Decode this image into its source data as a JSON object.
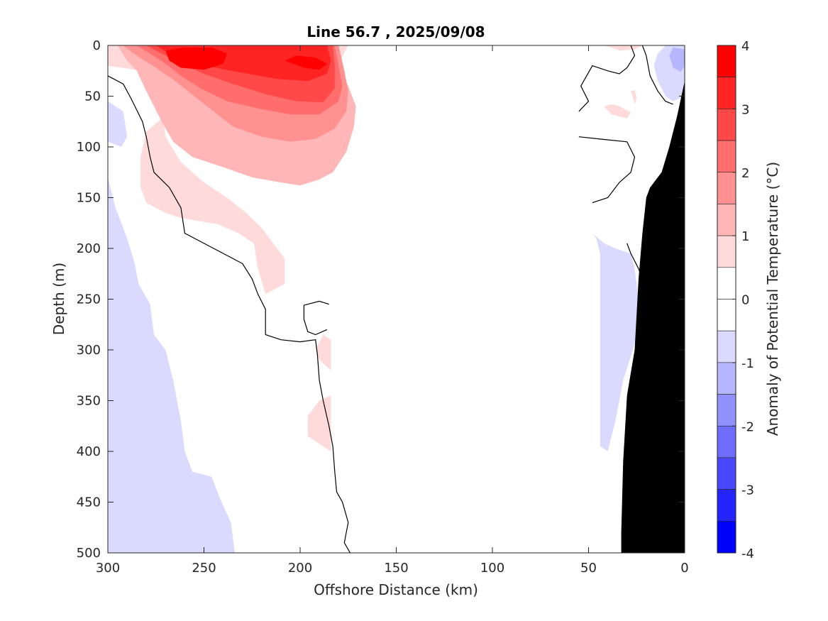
{
  "chart_data": {
    "type": "heatmap",
    "title": "Line 56.7 , 2025/09/08",
    "xlabel": "Offshore Distance (km)",
    "ylabel": "Depth (m)",
    "xlim": [
      300,
      0
    ],
    "ylim": [
      0,
      500
    ],
    "x_reversed": true,
    "y_reversed": true,
    "xticks": [
      300,
      250,
      200,
      150,
      100,
      50,
      0
    ],
    "yticks": [
      0,
      50,
      100,
      150,
      200,
      250,
      300,
      350,
      400,
      450,
      500
    ],
    "colorbar": {
      "label": "Anomaly of Potential Temperature (°C)",
      "range": [
        -4,
        4
      ],
      "ticks": [
        4,
        3,
        2,
        1,
        0,
        -1,
        -2,
        -3,
        -4
      ],
      "levels": [
        {
          "from": 3.5,
          "to": 4.0,
          "color": "#ff0000"
        },
        {
          "from": 3.0,
          "to": 3.5,
          "color": "#ff2424"
        },
        {
          "from": 2.5,
          "to": 3.0,
          "color": "#ff4848"
        },
        {
          "from": 2.0,
          "to": 2.5,
          "color": "#ff6d6d"
        },
        {
          "from": 1.5,
          "to": 2.0,
          "color": "#ff9191"
        },
        {
          "from": 1.0,
          "to": 1.5,
          "color": "#ffb6b6"
        },
        {
          "from": 0.5,
          "to": 1.0,
          "color": "#ffdada"
        },
        {
          "from": 0.0,
          "to": 0.5,
          "color": "#ffffff"
        },
        {
          "from": -0.5,
          "to": 0.0,
          "color": "#ffffff"
        },
        {
          "from": -1.0,
          "to": -0.5,
          "color": "#dadaff"
        },
        {
          "from": -1.5,
          "to": -1.0,
          "color": "#b6b6ff"
        },
        {
          "from": -2.0,
          "to": -1.5,
          "color": "#9191ff"
        },
        {
          "from": -2.5,
          "to": -2.0,
          "color": "#6d6dff"
        },
        {
          "from": -3.0,
          "to": -2.5,
          "color": "#4848ff"
        },
        {
          "from": -3.5,
          "to": -3.0,
          "color": "#2424ff"
        },
        {
          "from": -4.0,
          "to": -3.5,
          "color": "#0000ff"
        }
      ]
    },
    "regions": [
      {
        "name": "cool-offshore",
        "anomaly": -0.75,
        "color": "#dadaff",
        "outline": [
          [
            300,
            130
          ],
          [
            296,
            160
          ],
          [
            290,
            190
          ],
          [
            286,
            215
          ],
          [
            284,
            235
          ],
          [
            278,
            255
          ],
          [
            276,
            285
          ],
          [
            270,
            300
          ],
          [
            266,
            330
          ],
          [
            262,
            370
          ],
          [
            260,
            400
          ],
          [
            256,
            420
          ],
          [
            246,
            425
          ],
          [
            242,
            445
          ],
          [
            236,
            470
          ],
          [
            234,
            500
          ],
          [
            300,
            500
          ]
        ]
      },
      {
        "name": "cool-offshore-upper",
        "anomaly": -0.75,
        "color": "#dadaff",
        "outline": [
          [
            300,
            55
          ],
          [
            292,
            65
          ],
          [
            290,
            90
          ],
          [
            293,
            100
          ],
          [
            300,
            95
          ]
        ]
      },
      {
        "name": "warm-0.5",
        "anomaly": 0.75,
        "color": "#ffdada",
        "outline": [
          [
            300,
            20
          ],
          [
            282,
            25
          ],
          [
            276,
            40
          ],
          [
            272,
            60
          ],
          [
            270,
            90
          ],
          [
            262,
            115
          ],
          [
            250,
            135
          ],
          [
            238,
            150
          ],
          [
            228,
            165
          ],
          [
            220,
            180
          ],
          [
            214,
            195
          ],
          [
            208,
            210
          ],
          [
            208,
            235
          ],
          [
            218,
            245
          ],
          [
            222,
            220
          ],
          [
            224,
            195
          ],
          [
            232,
            185
          ],
          [
            243,
            176
          ],
          [
            262,
            170
          ],
          [
            270,
            165
          ],
          [
            280,
            155
          ],
          [
            283,
            140
          ],
          [
            283,
            110
          ],
          [
            280,
            85
          ],
          [
            272,
            72
          ],
          [
            262,
            60
          ],
          [
            253,
            48
          ],
          [
            225,
            40
          ],
          [
            200,
            35
          ],
          [
            182,
            25
          ],
          [
            175,
            0
          ],
          [
            300,
            0
          ]
        ]
      },
      {
        "name": "warm-1.0",
        "anomaly": 1.25,
        "color": "#ffb6b6",
        "outline": [
          [
            295,
            0
          ],
          [
            290,
            15
          ],
          [
            285,
            25
          ],
          [
            280,
            45
          ],
          [
            272,
            75
          ],
          [
            266,
            95
          ],
          [
            256,
            110
          ],
          [
            240,
            120
          ],
          [
            225,
            130
          ],
          [
            210,
            135
          ],
          [
            200,
            138
          ],
          [
            190,
            132
          ],
          [
            183,
            125
          ],
          [
            176,
            105
          ],
          [
            172,
            80
          ],
          [
            171,
            60
          ],
          [
            175,
            40
          ],
          [
            180,
            20
          ],
          [
            182,
            0
          ]
        ]
      },
      {
        "name": "warm-1.5",
        "anomaly": 1.75,
        "color": "#ff9191",
        "outline": [
          [
            292,
            0
          ],
          [
            285,
            10
          ],
          [
            275,
            22
          ],
          [
            265,
            35
          ],
          [
            255,
            50
          ],
          [
            245,
            65
          ],
          [
            235,
            80
          ],
          [
            220,
            90
          ],
          [
            205,
            95
          ],
          [
            192,
            92
          ],
          [
            182,
            82
          ],
          [
            176,
            65
          ],
          [
            175,
            45
          ],
          [
            177,
            25
          ],
          [
            180,
            0
          ]
        ]
      },
      {
        "name": "warm-2.0",
        "anomaly": 2.25,
        "color": "#ff6d6d",
        "outline": [
          [
            285,
            0
          ],
          [
            278,
            8
          ],
          [
            270,
            18
          ],
          [
            262,
            30
          ],
          [
            252,
            42
          ],
          [
            238,
            55
          ],
          [
            222,
            62
          ],
          [
            205,
            68
          ],
          [
            190,
            68
          ],
          [
            180,
            55
          ],
          [
            178,
            40
          ],
          [
            180,
            20
          ],
          [
            182,
            0
          ]
        ]
      },
      {
        "name": "warm-2.5",
        "anomaly": 2.75,
        "color": "#ff4848",
        "outline": [
          [
            280,
            0
          ],
          [
            272,
            8
          ],
          [
            262,
            18
          ],
          [
            250,
            28
          ],
          [
            235,
            38
          ],
          [
            218,
            48
          ],
          [
            202,
            55
          ],
          [
            188,
            56
          ],
          [
            182,
            42
          ],
          [
            182,
            20
          ],
          [
            183,
            0
          ]
        ]
      },
      {
        "name": "warm-3.0",
        "anomaly": 3.25,
        "color": "#ff2424",
        "outline": [
          [
            275,
            0
          ],
          [
            268,
            8
          ],
          [
            258,
            16
          ],
          [
            244,
            22
          ],
          [
            230,
            27
          ],
          [
            212,
            33
          ],
          [
            196,
            35
          ],
          [
            186,
            28
          ],
          [
            184,
            15
          ],
          [
            186,
            0
          ]
        ]
      },
      {
        "name": "warm-3.5",
        "anomaly": 3.75,
        "color": "#ff0000",
        "outline": [
          [
            270,
            5
          ],
          [
            268,
            15
          ],
          [
            262,
            22
          ],
          [
            250,
            24
          ],
          [
            240,
            18
          ],
          [
            238,
            8
          ],
          [
            246,
            2
          ],
          [
            260,
            2
          ]
        ]
      },
      {
        "name": "warm-core-200",
        "anomaly": 3.75,
        "color": "#ff0000",
        "outline": [
          [
            208,
            15
          ],
          [
            198,
            22
          ],
          [
            190,
            24
          ],
          [
            186,
            18
          ],
          [
            192,
            12
          ],
          [
            202,
            10
          ]
        ]
      },
      {
        "name": "warm-lens-190",
        "anomaly": 0.75,
        "color": "#ffdada",
        "outline": [
          [
            192,
            300
          ],
          [
            188,
            285
          ],
          [
            184,
            290
          ],
          [
            184,
            320
          ],
          [
            190,
            310
          ]
        ]
      },
      {
        "name": "warm-lens-190b",
        "anomaly": 0.75,
        "color": "#ffdada",
        "outline": [
          [
            196,
            365
          ],
          [
            190,
            350
          ],
          [
            184,
            345
          ],
          [
            184,
            400
          ],
          [
            188,
            395
          ],
          [
            196,
            385
          ]
        ]
      },
      {
        "name": "warm-nearshore-1",
        "anomaly": 0.75,
        "color": "#ffdada",
        "outline": [
          [
            42,
            0
          ],
          [
            38,
            2
          ],
          [
            34,
            5
          ],
          [
            26,
            4
          ],
          [
            22,
            0
          ]
        ]
      },
      {
        "name": "warm-nearshore-2",
        "anomaly": 0.75,
        "color": "#ffdada",
        "outline": [
          [
            42,
            60
          ],
          [
            38,
            68
          ],
          [
            30,
            72
          ],
          [
            28,
            66
          ],
          [
            34,
            60
          ],
          [
            38,
            58
          ]
        ]
      },
      {
        "name": "warm-nearshore-3",
        "anomaly": 0.75,
        "color": "#ffdada",
        "outline": [
          [
            28,
            45
          ],
          [
            27,
            50
          ],
          [
            26,
            58
          ],
          [
            25,
            52
          ],
          [
            26,
            44
          ]
        ]
      },
      {
        "name": "cool-nearshore",
        "anomaly": -0.75,
        "color": "#dadaff",
        "outline": [
          [
            50,
            180
          ],
          [
            46,
            190
          ],
          [
            44,
            205
          ],
          [
            44,
            230
          ],
          [
            44,
            260
          ],
          [
            44,
            300
          ],
          [
            44,
            330
          ],
          [
            44,
            350
          ],
          [
            44,
            370
          ],
          [
            44,
            395
          ],
          [
            40,
            400
          ],
          [
            36,
            370
          ],
          [
            32,
            330
          ],
          [
            27,
            300
          ],
          [
            24,
            280
          ],
          [
            24,
            250
          ],
          [
            26,
            220
          ],
          [
            28,
            205
          ],
          [
            36,
            200
          ],
          [
            42,
            195
          ],
          [
            48,
            185
          ]
        ]
      },
      {
        "name": "cool-nearshore-top",
        "anomaly": -0.75,
        "color": "#dadaff",
        "outline": [
          [
            10,
            0
          ],
          [
            14,
            8
          ],
          [
            16,
            20
          ],
          [
            14,
            35
          ],
          [
            10,
            50
          ],
          [
            6,
            55
          ],
          [
            0,
            50
          ],
          [
            0,
            0
          ]
        ]
      },
      {
        "name": "cool-nearshore-core",
        "anomaly": -1.25,
        "color": "#b6b6ff",
        "outline": [
          [
            6,
            2
          ],
          [
            8,
            10
          ],
          [
            6,
            22
          ],
          [
            2,
            26
          ],
          [
            0,
            20
          ],
          [
            0,
            4
          ]
        ]
      }
    ],
    "zero_contours": [
      [
        [
          300,
          30
        ],
        [
          292,
          38
        ],
        [
          288,
          52
        ],
        [
          282,
          75
        ],
        [
          280,
          90
        ],
        [
          278,
          110
        ],
        [
          276,
          125
        ],
        [
          268,
          140
        ],
        [
          262,
          160
        ],
        [
          260,
          185
        ],
        [
          250,
          195
        ],
        [
          240,
          205
        ],
        [
          230,
          215
        ],
        [
          225,
          230
        ],
        [
          222,
          245
        ],
        [
          218,
          260
        ],
        [
          218,
          285
        ],
        [
          210,
          290
        ],
        [
          200,
          292
        ],
        [
          192,
          290
        ],
        [
          191,
          305
        ],
        [
          190,
          330
        ],
        [
          188,
          350
        ],
        [
          185,
          375
        ],
        [
          183,
          395
        ],
        [
          182,
          420
        ],
        [
          181,
          440
        ],
        [
          178,
          450
        ],
        [
          175,
          470
        ],
        [
          177,
          490
        ],
        [
          174,
          500
        ]
      ],
      [
        [
          185,
          255
        ],
        [
          190,
          252
        ],
        [
          198,
          256
        ],
        [
          198,
          270
        ],
        [
          196,
          282
        ],
        [
          192,
          285
        ],
        [
          186,
          280
        ]
      ],
      [
        [
          28,
          0
        ],
        [
          26,
          10
        ],
        [
          30,
          22
        ],
        [
          34,
          28
        ],
        [
          40,
          25
        ],
        [
          48,
          20
        ],
        [
          54,
          40
        ],
        [
          50,
          55
        ],
        [
          55,
          65
        ]
      ],
      [
        [
          22,
          0
        ],
        [
          20,
          10
        ],
        [
          18,
          30
        ],
        [
          14,
          45
        ],
        [
          10,
          55
        ],
        [
          6,
          58
        ]
      ],
      [
        [
          55,
          90
        ],
        [
          45,
          92
        ],
        [
          30,
          95
        ],
        [
          26,
          110
        ],
        [
          28,
          125
        ],
        [
          34,
          135
        ],
        [
          40,
          150
        ],
        [
          48,
          155
        ]
      ],
      [
        [
          30,
          195
        ],
        [
          28,
          205
        ],
        [
          24,
          220
        ],
        [
          22,
          230
        ]
      ]
    ],
    "bathymetry_fill": "#000000",
    "bathymetry": [
      [
        0,
        35
      ],
      [
        4,
        70
      ],
      [
        8,
        100
      ],
      [
        12,
        125
      ],
      [
        18,
        140
      ],
      [
        20,
        150
      ],
      [
        22,
        185
      ],
      [
        24,
        230
      ],
      [
        26,
        300
      ],
      [
        30,
        345
      ],
      [
        32,
        410
      ],
      [
        33,
        480
      ],
      [
        33,
        500
      ],
      [
        0,
        500
      ]
    ]
  }
}
